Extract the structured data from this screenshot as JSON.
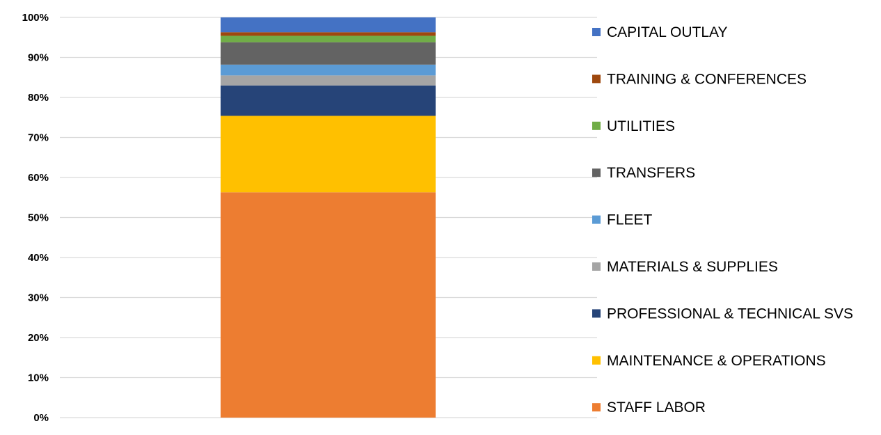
{
  "chart_data": {
    "type": "bar",
    "stacked": true,
    "categories": [
      ""
    ],
    "y_ticks": [
      "0%",
      "10%",
      "20%",
      "30%",
      "40%",
      "50%",
      "60%",
      "70%",
      "80%",
      "90%",
      "100%"
    ],
    "ylim": [
      0,
      100
    ],
    "grid": true,
    "legend_position": "right",
    "series": [
      {
        "name": "STAFF LABOR",
        "values": [
          56.3
        ],
        "color": "#ED7D31"
      },
      {
        "name": "MAINTENANCE & OPERATIONS",
        "values": [
          19.1
        ],
        "color": "#FFC000"
      },
      {
        "name": "PROFESSIONAL & TECHNICAL SVS",
        "values": [
          7.6
        ],
        "color": "#264478"
      },
      {
        "name": "MATERIALS & SUPPLIES",
        "values": [
          2.5
        ],
        "color": "#A5A5A5"
      },
      {
        "name": "FLEET",
        "values": [
          2.7
        ],
        "color": "#5B9BD5"
      },
      {
        "name": "TRANSFERS",
        "values": [
          5.6
        ],
        "color": "#636363"
      },
      {
        "name": "UTILITIES",
        "values": [
          1.6
        ],
        "color": "#70AD47"
      },
      {
        "name": "TRAINING & CONFERENCES",
        "values": [
          0.9
        ],
        "color": "#9E480E"
      },
      {
        "name": "CAPITAL OUTLAY",
        "values": [
          3.7
        ],
        "color": "#4472C4"
      }
    ]
  }
}
